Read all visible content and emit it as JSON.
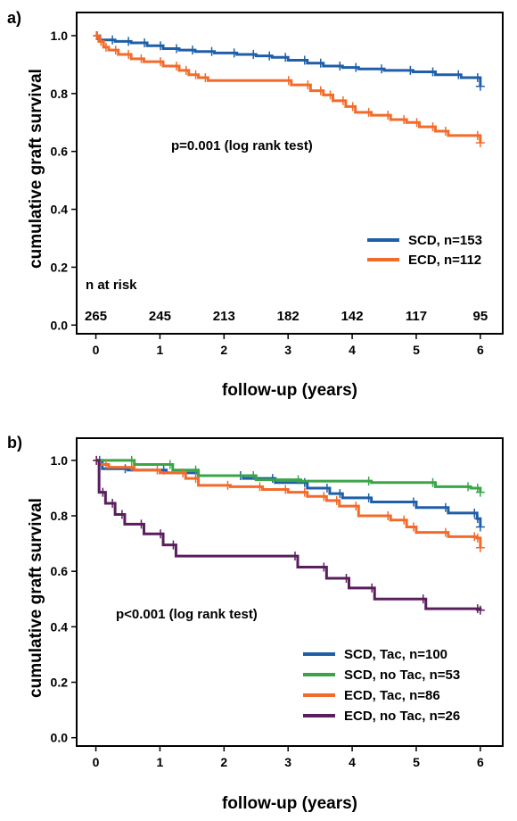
{
  "charts": [
    {
      "panel_label": "a)",
      "xlabel": "follow-up (years)",
      "ylabel": "cumulative graft survival",
      "annotation": "p=0.001 (log rank test)",
      "risk_title": "n at risk"
    },
    {
      "panel_label": "b)",
      "xlabel": "follow-up (years)",
      "ylabel": "cumulative graft survival",
      "annotation": "p<0.001 (log rank test)"
    }
  ],
  "chart_data": [
    {
      "type": "line",
      "step": true,
      "xlim": [
        -0.3,
        6.35
      ],
      "ylim": [
        -0.03,
        1.08
      ],
      "xticks": [
        "0",
        "1",
        "2",
        "3",
        "4",
        "5",
        "6"
      ],
      "yticks": [
        "0.0",
        "0.2",
        "0.4",
        "0.6",
        "0.8",
        "1.0"
      ],
      "risk_table": {
        "x": [
          0,
          1,
          2,
          3,
          4,
          5,
          6
        ],
        "counts": [
          "265",
          "245",
          "213",
          "182",
          "142",
          "117",
          "95"
        ]
      },
      "legend_position": "lower-right",
      "series": [
        {
          "name": "SCD, n=153",
          "color": "#1f5fa8",
          "x": [
            0,
            0.06,
            0.3,
            0.55,
            0.8,
            1.05,
            1.3,
            1.55,
            1.85,
            2.2,
            2.5,
            2.75,
            3.0,
            3.3,
            3.55,
            3.85,
            4.1,
            4.5,
            4.95,
            5.3,
            5.7,
            6.0
          ],
          "y": [
            1.0,
            0.985,
            0.98,
            0.975,
            0.965,
            0.955,
            0.95,
            0.945,
            0.94,
            0.935,
            0.93,
            0.925,
            0.915,
            0.905,
            0.895,
            0.89,
            0.885,
            0.88,
            0.875,
            0.865,
            0.855,
            0.825
          ]
        },
        {
          "name": "ECD, n=112",
          "color": "#f26b2a",
          "x": [
            0,
            0.05,
            0.12,
            0.2,
            0.35,
            0.55,
            0.75,
            1.05,
            1.3,
            1.45,
            1.6,
            1.75,
            3.05,
            3.35,
            3.55,
            3.7,
            3.9,
            4.05,
            4.3,
            4.6,
            4.85,
            5.05,
            5.3,
            5.5,
            6.0
          ],
          "y": [
            1.0,
            0.98,
            0.96,
            0.95,
            0.935,
            0.92,
            0.91,
            0.895,
            0.88,
            0.865,
            0.855,
            0.845,
            0.83,
            0.81,
            0.795,
            0.775,
            0.755,
            0.735,
            0.725,
            0.71,
            0.7,
            0.685,
            0.67,
            0.655,
            0.63
          ]
        }
      ]
    },
    {
      "type": "line",
      "step": true,
      "xlim": [
        -0.3,
        6.35
      ],
      "ylim": [
        -0.03,
        1.08
      ],
      "xticks": [
        "0",
        "1",
        "2",
        "3",
        "4",
        "5",
        "6"
      ],
      "yticks": [
        "0.0",
        "0.2",
        "0.4",
        "0.6",
        "0.8",
        "1.0"
      ],
      "legend_position": "lower-right",
      "series": [
        {
          "name": "SCD, Tac, n=100",
          "color": "#1f5fa8",
          "x": [
            0,
            0.1,
            0.5,
            1.1,
            1.6,
            2.3,
            2.8,
            3.3,
            3.65,
            3.85,
            4.3,
            5.0,
            5.5,
            5.95,
            6.0
          ],
          "y": [
            1.0,
            0.97,
            0.965,
            0.955,
            0.945,
            0.935,
            0.92,
            0.9,
            0.88,
            0.865,
            0.85,
            0.83,
            0.81,
            0.79,
            0.76
          ]
        },
        {
          "name": "SCD, no Tac, n=53",
          "color": "#3aa548",
          "x": [
            0,
            0.6,
            1.2,
            1.6,
            2.5,
            3.2,
            4.3,
            5.3,
            5.85,
            6.0
          ],
          "y": [
            1.0,
            0.985,
            0.965,
            0.945,
            0.93,
            0.925,
            0.92,
            0.905,
            0.9,
            0.885
          ]
        },
        {
          "name": "ECD, Tac, n=86",
          "color": "#f26b2a",
          "x": [
            0,
            0.05,
            0.2,
            0.6,
            1.0,
            1.4,
            1.6,
            2.1,
            2.6,
            3.0,
            3.3,
            3.6,
            3.8,
            4.1,
            4.6,
            4.85,
            5.0,
            5.5,
            5.95,
            6.0
          ],
          "y": [
            1.0,
            0.985,
            0.975,
            0.965,
            0.955,
            0.935,
            0.91,
            0.905,
            0.895,
            0.885,
            0.87,
            0.855,
            0.835,
            0.8,
            0.785,
            0.76,
            0.74,
            0.725,
            0.72,
            0.685
          ]
        },
        {
          "name": "ECD, no Tac, n=26",
          "color": "#5a1e5e",
          "x": [
            0,
            0.05,
            0.15,
            0.3,
            0.45,
            0.75,
            1.05,
            1.25,
            3.15,
            3.6,
            3.95,
            4.35,
            5.15,
            6.0
          ],
          "y": [
            1.0,
            0.885,
            0.845,
            0.805,
            0.77,
            0.735,
            0.695,
            0.655,
            0.615,
            0.575,
            0.54,
            0.5,
            0.465,
            0.46
          ]
        }
      ]
    }
  ]
}
